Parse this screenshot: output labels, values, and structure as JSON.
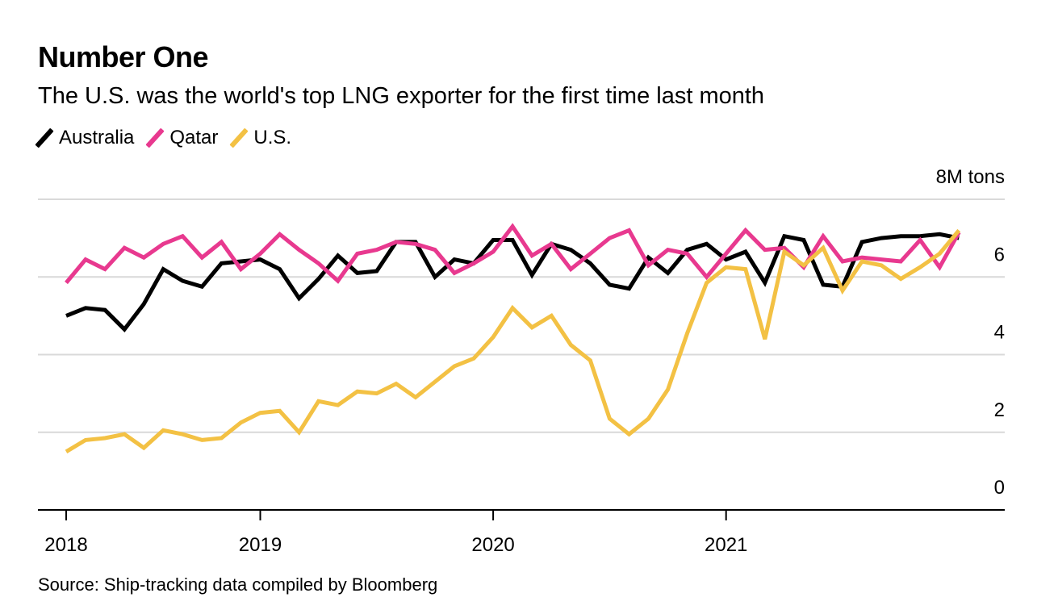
{
  "header": {
    "title": "Number One",
    "subtitle": "The U.S. was the world's top LNG exporter for the first time last month"
  },
  "footer": {
    "source": "Source: Ship-tracking data compiled by Bloomberg"
  },
  "chart_data": {
    "type": "line",
    "title": "Number One",
    "subtitle": "The U.S. was the world's top LNG exporter for the first time last month",
    "xlabel": "",
    "ylabel": "",
    "y_unit_label": "8M tons",
    "ylim": [
      0,
      8
    ],
    "yticks": [
      0,
      2,
      4,
      6,
      8
    ],
    "ytick_labels": [
      "0",
      "2",
      "4",
      "6",
      "8M tons"
    ],
    "y_axis_side": "right",
    "grid": true,
    "legend_position": "top-left",
    "x_frequency": "monthly",
    "x_count": 47,
    "xticks": [
      {
        "index": 0,
        "label": "2018"
      },
      {
        "index": 10,
        "label": "2019"
      },
      {
        "index": 22,
        "label": "2020"
      },
      {
        "index": 34,
        "label": "2021"
      }
    ],
    "series": [
      {
        "name": "Australia",
        "color": "#000000",
        "values": [
          5.0,
          5.2,
          5.15,
          4.65,
          5.3,
          6.2,
          5.9,
          5.75,
          6.35,
          6.4,
          6.45,
          6.2,
          5.45,
          5.95,
          6.55,
          6.1,
          6.15,
          6.9,
          6.9,
          6.0,
          6.45,
          6.35,
          6.95,
          6.95,
          6.05,
          6.85,
          6.7,
          6.35,
          5.8,
          5.7,
          6.5,
          6.1,
          6.7,
          6.85,
          6.45,
          6.65,
          5.85,
          7.05,
          6.95,
          5.8,
          5.75,
          6.9,
          7.0,
          7.05,
          7.05,
          7.1,
          7.0
        ]
      },
      {
        "name": "Qatar",
        "color": "#e8398f",
        "values": [
          5.85,
          6.45,
          6.2,
          6.75,
          6.5,
          6.85,
          7.05,
          6.5,
          6.9,
          6.2,
          6.6,
          7.1,
          6.7,
          6.35,
          5.9,
          6.6,
          6.7,
          6.9,
          6.85,
          6.7,
          6.1,
          6.35,
          6.65,
          7.3,
          6.55,
          6.85,
          6.2,
          6.6,
          7.0,
          7.2,
          6.3,
          6.7,
          6.6,
          6.0,
          6.6,
          7.2,
          6.7,
          6.75,
          6.25,
          7.05,
          6.4,
          6.5,
          6.45,
          6.4,
          6.95,
          6.25,
          7.15
        ]
      },
      {
        "name": "U.S.",
        "color": "#f3c144",
        "values": [
          1.5,
          1.8,
          1.85,
          1.95,
          1.6,
          2.05,
          1.95,
          1.8,
          1.85,
          2.25,
          2.5,
          2.55,
          2.0,
          2.8,
          2.7,
          3.05,
          3.0,
          3.25,
          2.9,
          3.3,
          3.7,
          3.9,
          4.45,
          5.2,
          4.7,
          5.0,
          4.25,
          3.85,
          2.35,
          1.95,
          2.35,
          3.1,
          4.55,
          5.85,
          6.25,
          6.2,
          4.4,
          6.65,
          6.3,
          6.75,
          5.65,
          6.4,
          6.3,
          5.95,
          6.25,
          6.6,
          7.2
        ]
      }
    ]
  }
}
